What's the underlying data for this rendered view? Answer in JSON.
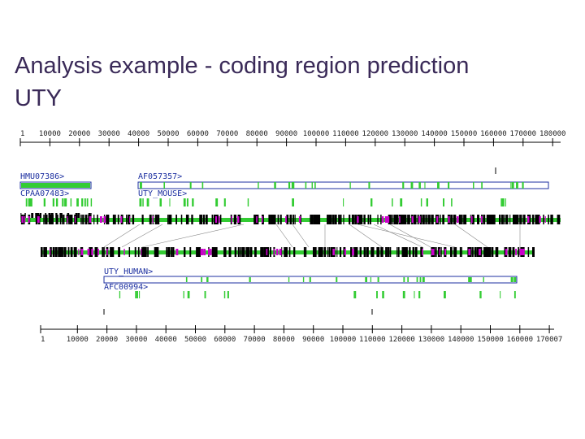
{
  "title": {
    "lines": [
      "Analysis example - coding region prediction",
      "UTY"
    ]
  },
  "top_ruler": {
    "labels": [
      "1",
      "10000",
      "20000",
      "30000",
      "40000",
      "50000",
      "60000",
      "70000",
      "80000",
      "90000",
      "100000",
      "110000",
      "120000",
      "130000",
      "140000",
      "150000",
      "160000",
      "170000",
      "180000"
    ]
  },
  "sequences": {
    "top_left": [
      "HMU07386>",
      "CPAA07483>"
    ],
    "top_right": [
      "AF057357>",
      "UTY_MOUSE>"
    ],
    "bottom": [
      "UTY_HUMAN>",
      "AFC00994>"
    ]
  },
  "bottom_ruler": {
    "labels": [
      "1",
      "10000",
      "20000",
      "30000",
      "40000",
      "50000",
      "60000",
      "70000",
      "80000",
      "90000",
      "100000",
      "110000",
      "120000",
      "130000",
      "140000",
      "150000",
      "160000",
      "170007"
    ]
  }
}
